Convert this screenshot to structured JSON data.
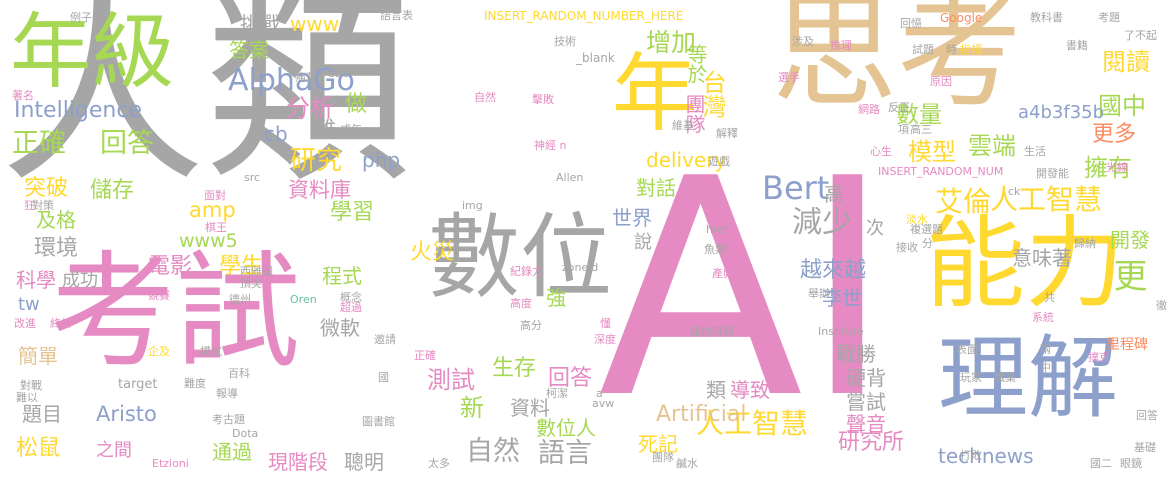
{
  "palette": {
    "gray": "#a6a6a6",
    "pink": "#e58ac2",
    "tan": "#e5c494",
    "yellow": "#ffd92f",
    "green": "#a6d854",
    "blue": "#8da0cb",
    "teal": "#66c2a5",
    "orange": "#fc8d62"
  },
  "words": [
    {
      "text": "人類",
      "color": "gray"
    },
    {
      "text": "AI",
      "color": "pink"
    },
    {
      "text": "思考",
      "color": "tan"
    },
    {
      "text": "考試",
      "color": "pink"
    },
    {
      "text": "年級",
      "color": "green"
    },
    {
      "text": "數位",
      "color": "gray"
    },
    {
      "text": "能力",
      "color": "yellow"
    },
    {
      "text": "理解",
      "color": "blue"
    },
    {
      "text": "年",
      "color": "yellow"
    },
    {
      "text": "AlphaGo",
      "color": "blue"
    },
    {
      "text": "Intelligence",
      "color": "blue"
    },
    {
      "text": "正確",
      "color": "green"
    },
    {
      "text": "回答",
      "color": "green"
    },
    {
      "text": "艾倫",
      "color": "yellow"
    },
    {
      "text": "人工智慧",
      "color": "yellow"
    },
    {
      "text": "人工智慧",
      "color": "yellow"
    },
    {
      "text": "Bert",
      "color": "blue"
    },
    {
      "text": "減少",
      "color": "gray"
    },
    {
      "text": "更",
      "color": "green"
    },
    {
      "text": "閱讀",
      "color": "yellow"
    },
    {
      "text": "國中",
      "color": "green"
    },
    {
      "text": "更多",
      "color": "orange"
    },
    {
      "text": "擁有",
      "color": "green"
    },
    {
      "text": "增加",
      "color": "green"
    },
    {
      "text": "數量",
      "color": "green"
    },
    {
      "text": "台灣",
      "color": "yellow"
    },
    {
      "text": "團隊",
      "color": "pink"
    },
    {
      "text": "等於",
      "color": "green"
    },
    {
      "text": "模型",
      "color": "yellow"
    },
    {
      "text": "雲端",
      "color": "green"
    },
    {
      "text": "a4b3f35b",
      "color": "blue"
    },
    {
      "text": "研究",
      "color": "yellow"
    },
    {
      "text": "分析",
      "color": "pink"
    },
    {
      "text": "做",
      "color": "green"
    },
    {
      "text": "php",
      "color": "blue"
    },
    {
      "text": "cb",
      "color": "blue"
    },
    {
      "text": "難",
      "color": "gray"
    },
    {
      "text": "資料庫",
      "color": "pink"
    },
    {
      "text": "學習",
      "color": "green"
    },
    {
      "text": "突破",
      "color": "yellow"
    },
    {
      "text": "儲存",
      "color": "green"
    },
    {
      "text": "amp",
      "color": "yellow"
    },
    {
      "text": "www5",
      "color": "green"
    },
    {
      "text": "電影",
      "color": "pink"
    },
    {
      "text": "學生",
      "color": "yellow"
    },
    {
      "text": "及格",
      "color": "green"
    },
    {
      "text": "環境",
      "color": "gray"
    },
    {
      "text": "科學",
      "color": "pink"
    },
    {
      "text": "成功",
      "color": "gray"
    },
    {
      "text": "挑戰",
      "color": "gray"
    },
    {
      "text": "www",
      "color": "yellow"
    },
    {
      "text": "答案",
      "color": "green"
    },
    {
      "text": "delivery",
      "color": "yellow"
    },
    {
      "text": "對話",
      "color": "green"
    },
    {
      "text": "世界",
      "color": "blue"
    },
    {
      "text": "高",
      "color": "gray"
    },
    {
      "text": "次",
      "color": "gray"
    },
    {
      "text": "越來越",
      "color": "blue"
    },
    {
      "text": "李世",
      "color": "blue"
    },
    {
      "text": "意味著",
      "color": "gray"
    },
    {
      "text": "開發",
      "color": "green"
    },
    {
      "text": "火災",
      "color": "yellow"
    },
    {
      "text": "程式",
      "color": "green"
    },
    {
      "text": "微軟",
      "color": "gray"
    },
    {
      "text": "測試",
      "color": "pink"
    },
    {
      "text": "生存",
      "color": "green"
    },
    {
      "text": "回答",
      "color": "pink"
    },
    {
      "text": "強",
      "color": "green"
    },
    {
      "text": "戰勝",
      "color": "gray"
    },
    {
      "text": "硬背",
      "color": "gray"
    },
    {
      "text": "嘗試",
      "color": "gray"
    },
    {
      "text": "聲音",
      "color": "pink"
    },
    {
      "text": "類",
      "color": "gray"
    },
    {
      "text": "導致",
      "color": "pink"
    },
    {
      "text": "Artificial",
      "color": "tan"
    },
    {
      "text": "新",
      "color": "green"
    },
    {
      "text": "資料",
      "color": "gray"
    },
    {
      "text": "數位人",
      "color": "green"
    },
    {
      "text": "死記",
      "color": "yellow"
    },
    {
      "text": "研究所",
      "color": "pink"
    },
    {
      "text": "technews",
      "color": "blue"
    },
    {
      "text": "自然",
      "color": "gray"
    },
    {
      "text": "語言",
      "color": "gray"
    },
    {
      "text": "Aristo",
      "color": "blue"
    },
    {
      "text": "簡單",
      "color": "tan"
    },
    {
      "text": "題目",
      "color": "gray"
    },
    {
      "text": "松鼠",
      "color": "yellow"
    },
    {
      "text": "之間",
      "color": "pink"
    },
    {
      "text": "通過",
      "color": "green"
    },
    {
      "text": "現階段",
      "color": "pink"
    },
    {
      "text": "聰明",
      "color": "gray"
    },
    {
      "text": "tw",
      "color": "blue"
    },
    {
      "text": "說",
      "color": "gray"
    },
    {
      "text": "INSERT_RANDOM_NUMBER_HERE",
      "color": "yellow"
    },
    {
      "text": "_blank",
      "color": "gray"
    },
    {
      "text": "語言表",
      "color": "gray"
    },
    {
      "text": "例子",
      "color": "gray"
    },
    {
      "text": "技術",
      "color": "gray"
    },
    {
      "text": "Google",
      "color": "orange"
    },
    {
      "text": "教科書",
      "color": "gray"
    },
    {
      "text": "考題",
      "color": "gray"
    },
    {
      "text": "回憶",
      "color": "gray"
    },
    {
      "text": "涉及",
      "color": "gray"
    },
    {
      "text": "推理",
      "color": "pink"
    },
    {
      "text": "試題",
      "color": "gray"
    },
    {
      "text": "時",
      "color": "gray"
    },
    {
      "text": "指標",
      "color": "yellow"
    },
    {
      "text": "書籍",
      "color": "gray"
    },
    {
      "text": "選手",
      "color": "pink"
    },
    {
      "text": "原因",
      "color": "pink"
    },
    {
      "text": "CEO",
      "color": "gray"
    },
    {
      "text": "痛苦",
      "color": "gray"
    },
    {
      "text": "牠們",
      "color": "gray"
    },
    {
      "text": "成年",
      "color": "gray"
    },
    {
      "text": "著名",
      "color": "pink"
    },
    {
      "text": "自然",
      "color": "pink"
    },
    {
      "text": "擊敗",
      "color": "pink"
    },
    {
      "text": "維基",
      "color": "gray"
    },
    {
      "text": "神經 n",
      "color": "pink"
    },
    {
      "text": "解釋",
      "color": "gray"
    },
    {
      "text": "遊戲",
      "color": "gray"
    },
    {
      "text": "網路",
      "color": "pink"
    },
    {
      "text": "反正",
      "color": "gray"
    },
    {
      "text": "項",
      "color": "gray"
    },
    {
      "text": "高三",
      "color": "gray"
    },
    {
      "text": "生活",
      "color": "gray"
    },
    {
      "text": "心生",
      "color": "pink"
    },
    {
      "text": "光線",
      "color": "pink"
    },
    {
      "text": "開發能",
      "color": "gray"
    },
    {
      "text": "INSERT_RANDOM_NUM",
      "color": "pink"
    },
    {
      "text": "Allen",
      "color": "gray"
    },
    {
      "text": "src",
      "color": "gray"
    },
    {
      "text": "面對",
      "color": "pink"
    },
    {
      "text": "狂",
      "color": "pink"
    },
    {
      "text": "對策",
      "color": "gray"
    },
    {
      "text": "棋王",
      "color": "pink"
    },
    {
      "text": "img",
      "color": "gray"
    },
    {
      "text": "ck",
      "color": "gray"
    },
    {
      "text": "淡水",
      "color": "yellow"
    },
    {
      "text": "href",
      "color": "gray"
    },
    {
      "text": "魚類",
      "color": "gray"
    },
    {
      "text": "複選題",
      "color": "gray"
    },
    {
      "text": "分",
      "color": "gray"
    },
    {
      "text": "接收",
      "color": "gray"
    },
    {
      "text": "歸納",
      "color": "gray"
    },
    {
      "text": "西雅圖",
      "color": "gray"
    },
    {
      "text": "概念",
      "color": "gray"
    },
    {
      "text": "紀錄力",
      "color": "pink"
    },
    {
      "text": "zoneid",
      "color": "gray"
    },
    {
      "text": "產卵",
      "color": "pink"
    },
    {
      "text": "舉辦",
      "color": "gray"
    },
    {
      "text": "頂尖",
      "color": "gray"
    },
    {
      "text": "競賽",
      "color": "pink"
    },
    {
      "text": "德州",
      "color": "gray"
    },
    {
      "text": "超過",
      "color": "pink"
    },
    {
      "text": "高度",
      "color": "pink"
    },
    {
      "text": "Oren",
      "color": "teal"
    },
    {
      "text": "改進",
      "color": "pink"
    },
    {
      "text": "終於",
      "color": "pink"
    },
    {
      "text": "高分",
      "color": "gray"
    },
    {
      "text": "懂",
      "color": "pink"
    },
    {
      "text": "深度",
      "color": "pink"
    },
    {
      "text": "紐約時報",
      "color": "gray"
    },
    {
      "text": "Institute",
      "color": "gray"
    },
    {
      "text": "系統",
      "color": "pink"
    },
    {
      "text": "共",
      "color": "gray"
    },
    {
      "text": "徹",
      "color": "gray"
    },
    {
      "text": "企及",
      "color": "yellow"
    },
    {
      "text": "模式",
      "color": "gray"
    },
    {
      "text": "邀請",
      "color": "gray"
    },
    {
      "text": "正確",
      "color": "pink"
    },
    {
      "text": "表面",
      "color": "gray"
    },
    {
      "text": "玩家",
      "color": "gray"
    },
    {
      "text": "職業",
      "color": "gray"
    },
    {
      "text": "兩",
      "color": "gray"
    },
    {
      "text": "中",
      "color": "gray"
    },
    {
      "text": "撲克",
      "color": "pink"
    },
    {
      "text": "里程碑",
      "color": "orange"
    },
    {
      "text": "對戰",
      "color": "gray"
    },
    {
      "text": "難以",
      "color": "gray"
    },
    {
      "text": "target",
      "color": "gray"
    },
    {
      "text": "難度",
      "color": "gray"
    },
    {
      "text": "百科",
      "color": "gray"
    },
    {
      "text": "報導",
      "color": "gray"
    },
    {
      "text": "國",
      "color": "gray"
    },
    {
      "text": "柯潔",
      "color": "gray"
    },
    {
      "text": "avw",
      "color": "gray"
    },
    {
      "text": "a",
      "color": "gray"
    },
    {
      "text": "Dota",
      "color": "gray"
    },
    {
      "text": "考古題",
      "color": "gray"
    },
    {
      "text": "圖書館",
      "color": "gray"
    },
    {
      "text": "Etzioni",
      "color": "pink"
    },
    {
      "text": "太多",
      "color": "gray"
    },
    {
      "text": "團隊",
      "color": "gray"
    },
    {
      "text": "鹹水",
      "color": "gray"
    },
    {
      "text": "打敗",
      "color": "gray"
    },
    {
      "text": "國二",
      "color": "gray"
    },
    {
      "text": "眼鏡",
      "color": "gray"
    },
    {
      "text": "基礎",
      "color": "gray"
    },
    {
      "text": "了不起",
      "color": "gray"
    },
    {
      "text": "回答",
      "color": "gray"
    }
  ]
}
